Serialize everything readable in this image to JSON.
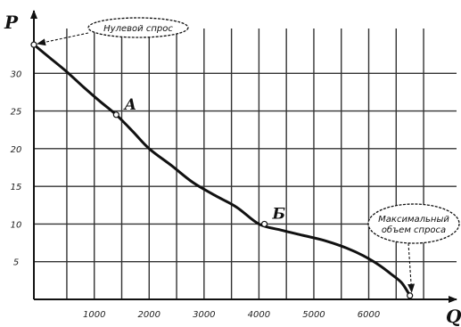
{
  "chart_data": {
    "type": "line",
    "xlabel": "Q",
    "ylabel": "P",
    "xlim": [
      -100,
      7600
    ],
    "ylim": [
      0,
      35
    ],
    "x_ticks": [
      500,
      1000,
      1500,
      2000,
      2500,
      3000,
      3500,
      4000,
      4500,
      5000,
      5500,
      6000,
      6500,
      7000
    ],
    "x_tick_labels": [
      {
        "value": 1000,
        "text": "1000"
      },
      {
        "value": 2000,
        "text": "2000"
      },
      {
        "value": 3000,
        "text": "3000"
      },
      {
        "value": 4000,
        "text": "4000"
      },
      {
        "value": 5000,
        "text": "5000"
      },
      {
        "value": 6000,
        "text": "6000"
      }
    ],
    "y_ticks": [
      5,
      10,
      15,
      20,
      25,
      30
    ],
    "y_tick_labels": [
      {
        "value": 30,
        "text": "30"
      },
      {
        "value": 25,
        "text": "25"
      },
      {
        "value": 20,
        "text": "20"
      },
      {
        "value": 15,
        "text": "15"
      },
      {
        "value": 10,
        "text": "10"
      },
      {
        "value": 5,
        "text": "5"
      }
    ],
    "grid": true,
    "series": [
      {
        "x": [
          -100,
          200,
          500,
          800,
          1100,
          1400,
          1700,
          2000,
          2400,
          2800,
          3200,
          3600,
          4000,
          4400,
          4800,
          5200,
          5600,
          5900,
          6200,
          6400,
          6600,
          6750
        ],
        "y": [
          33.8,
          32.0,
          30.2,
          28.2,
          26.3,
          24.5,
          22.3,
          20.0,
          17.8,
          15.5,
          13.8,
          12.2,
          10.0,
          9.2,
          8.5,
          7.8,
          6.8,
          5.8,
          4.5,
          3.4,
          2.2,
          0.5
        ]
      }
    ],
    "points": [
      {
        "label": "А",
        "x": 1400,
        "y": 24.5
      },
      {
        "label": "Б",
        "x": 4100,
        "y": 10.0
      }
    ],
    "annotations": [
      {
        "lines": [
          "Нулевой спрос"
        ],
        "target": {
          "x": -100,
          "y": 33.8
        }
      },
      {
        "lines": [
          "Максимальный",
          "объем спроса"
        ],
        "target": {
          "x": 6750,
          "y": 0.5
        }
      }
    ]
  },
  "colors": {
    "curve": "#111111",
    "grid": "#333333",
    "axis": "#111111",
    "marker": "#ffffff"
  }
}
